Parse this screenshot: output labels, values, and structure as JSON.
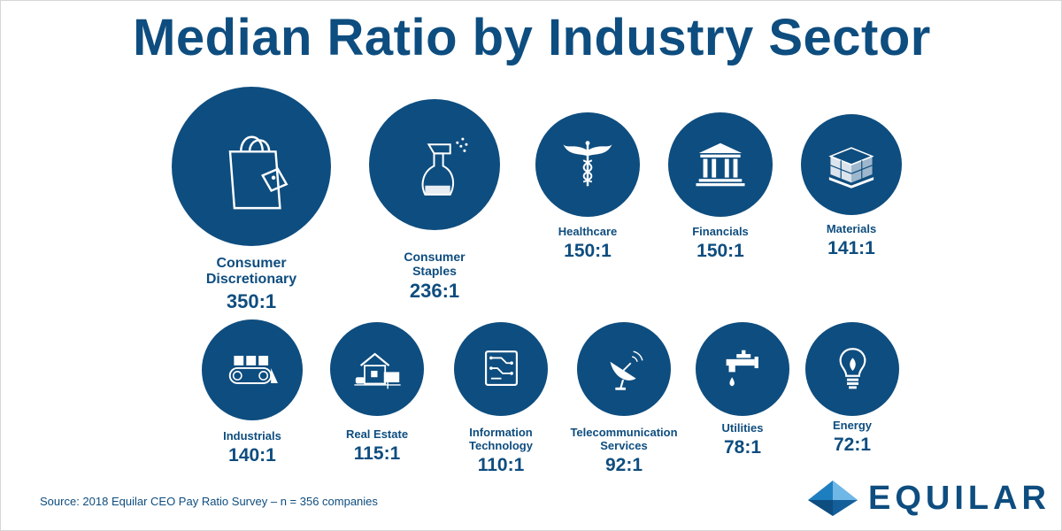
{
  "chart_data": {
    "type": "bubble",
    "title": "Median Ratio by Industry Sector",
    "categories": [
      {
        "name_lines": [
          "Consumer",
          "Discretionary"
        ],
        "ratio_label": "350:1",
        "value": 350,
        "icon": "shopping-bag-icon"
      },
      {
        "name_lines": [
          "Consumer",
          "Staples"
        ],
        "ratio_label": "236:1",
        "value": 236,
        "icon": "spray-bottle-icon"
      },
      {
        "name_lines": [
          "Healthcare"
        ],
        "ratio_label": "150:1",
        "value": 150,
        "icon": "caduceus-icon"
      },
      {
        "name_lines": [
          "Financials"
        ],
        "ratio_label": "150:1",
        "value": 150,
        "icon": "bank-building-icon"
      },
      {
        "name_lines": [
          "Materials"
        ],
        "ratio_label": "141:1",
        "value": 141,
        "icon": "pallet-boxes-icon"
      },
      {
        "name_lines": [
          "Industrials"
        ],
        "ratio_label": "140:1",
        "value": 140,
        "icon": "conveyor-belt-icon"
      },
      {
        "name_lines": [
          "Real Estate"
        ],
        "ratio_label": "115:1",
        "value": 115,
        "icon": "house-for-sale-icon"
      },
      {
        "name_lines": [
          "Information",
          "Technology"
        ],
        "ratio_label": "110:1",
        "value": 110,
        "icon": "circuit-chip-icon"
      },
      {
        "name_lines": [
          "Telecommunication",
          "Services"
        ],
        "ratio_label": "92:1",
        "value": 92,
        "icon": "satellite-dish-icon"
      },
      {
        "name_lines": [
          "Utilities"
        ],
        "ratio_label": "78:1",
        "value": 78,
        "icon": "water-faucet-icon"
      },
      {
        "name_lines": [
          "Energy"
        ],
        "ratio_label": "72:1",
        "value": 72,
        "icon": "light-bulb-icon"
      }
    ]
  },
  "source": "Source: 2018 Equilar CEO Pay Ratio Survey – n = 356 companies",
  "logo": {
    "text": "EQUILAR",
    "icon": "diamond-logo-icon"
  },
  "colors": {
    "primary": "#0e4d7f",
    "background": "#ffffff"
  }
}
